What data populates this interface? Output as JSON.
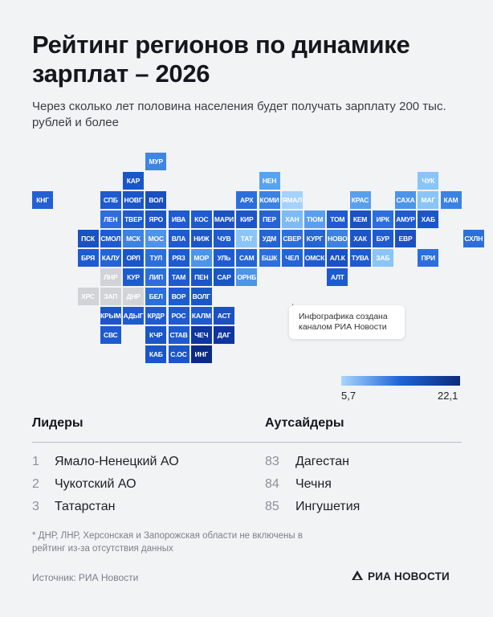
{
  "header": {
    "title": "Рейтинг регионов по динамике зарплат – 2026",
    "subtitle": "Через сколько лет половина населения будет получать зарплату 200 тыс. рублей и более"
  },
  "map": {
    "regions": [
      {
        "label": "МУР",
        "row": 0,
        "col": 5,
        "color": "#3f86e4"
      },
      {
        "label": "КАР",
        "row": 1,
        "col": 4,
        "color": "#1b56c9"
      },
      {
        "label": "НЕН",
        "row": 1,
        "col": 10,
        "color": "#5aa2ee"
      },
      {
        "label": "ЧУК",
        "row": 1,
        "col": 17,
        "color": "#8ac5f6"
      },
      {
        "label": "КНГ",
        "row": 2,
        "col": 0,
        "color": "#2460d2"
      },
      {
        "label": "СПБ",
        "row": 2,
        "col": 3,
        "color": "#1e5bd0"
      },
      {
        "label": "НОВГ",
        "row": 2,
        "col": 4,
        "color": "#1b56c9"
      },
      {
        "label": "ВОЛ",
        "row": 2,
        "col": 5,
        "color": "#194fbf"
      },
      {
        "label": "АРХ",
        "row": 2,
        "col": 9,
        "color": "#2c6fdc"
      },
      {
        "label": "КОМИ",
        "row": 2,
        "col": 10,
        "color": "#3b82e3"
      },
      {
        "label": "ЯМАЛ",
        "row": 2,
        "col": 11,
        "color": "#a4d2fa"
      },
      {
        "label": "КРАС",
        "row": 2,
        "col": 14,
        "color": "#5a9fee"
      },
      {
        "label": "САХА",
        "row": 2,
        "col": 16,
        "color": "#4d94ea"
      },
      {
        "label": "МАГ",
        "row": 2,
        "col": 17,
        "color": "#8ac5f6"
      },
      {
        "label": "КАМ",
        "row": 2,
        "col": 18,
        "color": "#3b82e3"
      },
      {
        "label": "ЛЕН",
        "row": 3,
        "col": 3,
        "color": "#2c6fdc"
      },
      {
        "label": "ТВЕР",
        "row": 3,
        "col": 4,
        "color": "#1e5bd0"
      },
      {
        "label": "ЯРО",
        "row": 3,
        "col": 5,
        "color": "#1b56c9"
      },
      {
        "label": "ИВА",
        "row": 3,
        "col": 6,
        "color": "#1e5bd0"
      },
      {
        "label": "КОС",
        "row": 3,
        "col": 7,
        "color": "#1e5bd0"
      },
      {
        "label": "МАРИ",
        "row": 3,
        "col": 8,
        "color": "#1a52c4"
      },
      {
        "label": "КИР",
        "row": 3,
        "col": 9,
        "color": "#1b56c9"
      },
      {
        "label": "ПЕР",
        "row": 3,
        "col": 10,
        "color": "#2464d4"
      },
      {
        "label": "ХАН",
        "row": 3,
        "col": 11,
        "color": "#7cbcf4"
      },
      {
        "label": "ТЮМ",
        "row": 3,
        "col": 12,
        "color": "#5a9fee"
      },
      {
        "label": "ТОМ",
        "row": 3,
        "col": 13,
        "color": "#1e5bd0"
      },
      {
        "label": "КЕМ",
        "row": 3,
        "col": 14,
        "color": "#1a52c4"
      },
      {
        "label": "ИРК",
        "row": 3,
        "col": 15,
        "color": "#2c6fdc"
      },
      {
        "label": "АМУР",
        "row": 3,
        "col": 16,
        "color": "#1e5bd0"
      },
      {
        "label": "ХАБ",
        "row": 3,
        "col": 17,
        "color": "#1b56c9"
      },
      {
        "label": "ПСК",
        "row": 4,
        "col": 2,
        "color": "#1a52c4"
      },
      {
        "label": "СМОЛ",
        "row": 4,
        "col": 3,
        "color": "#1e5bd0"
      },
      {
        "label": "МСК",
        "row": 4,
        "col": 4,
        "color": "#3b82e3"
      },
      {
        "label": "МОС",
        "row": 4,
        "col": 5,
        "color": "#4d94ea"
      },
      {
        "label": "ВЛА",
        "row": 4,
        "col": 6,
        "color": "#1e5bd0"
      },
      {
        "label": "НИЖ",
        "row": 4,
        "col": 7,
        "color": "#1b56c9"
      },
      {
        "label": "ЧУВ",
        "row": 4,
        "col": 8,
        "color": "#1e5bd0"
      },
      {
        "label": "ТАТ",
        "row": 4,
        "col": 9,
        "color": "#8ac5f6"
      },
      {
        "label": "УДМ",
        "row": 4,
        "col": 10,
        "color": "#2464d4"
      },
      {
        "label": "СВЕР",
        "row": 4,
        "col": 11,
        "color": "#2c6fdc"
      },
      {
        "label": "КУРГ",
        "row": 4,
        "col": 12,
        "color": "#2464d4"
      },
      {
        "label": "НОВО",
        "row": 4,
        "col": 13,
        "color": "#3b82e3"
      },
      {
        "label": "ХАК",
        "row": 4,
        "col": 14,
        "color": "#1b56c9"
      },
      {
        "label": "БУР",
        "row": 4,
        "col": 15,
        "color": "#1e5bd0"
      },
      {
        "label": "ЕВР",
        "row": 4,
        "col": 16,
        "color": "#1a52c4"
      },
      {
        "label": "СХЛН",
        "row": 4,
        "col": 19,
        "color": "#2c6fdc"
      },
      {
        "label": "БРЯ",
        "row": 5,
        "col": 2,
        "color": "#1e5bd0"
      },
      {
        "label": "КАЛУ",
        "row": 5,
        "col": 3,
        "color": "#2464d4"
      },
      {
        "label": "ОРЛ",
        "row": 5,
        "col": 4,
        "color": "#1b56c9"
      },
      {
        "label": "ТУЛ",
        "row": 5,
        "col": 5,
        "color": "#2c6fdc"
      },
      {
        "label": "РЯЗ",
        "row": 5,
        "col": 6,
        "color": "#1e5bd0"
      },
      {
        "label": "МОР",
        "row": 5,
        "col": 7,
        "color": "#4d94ea"
      },
      {
        "label": "УЛЬ",
        "row": 5,
        "col": 8,
        "color": "#1e5bd0"
      },
      {
        "label": "САМ",
        "row": 5,
        "col": 9,
        "color": "#2464d4"
      },
      {
        "label": "БШК",
        "row": 5,
        "col": 10,
        "color": "#2c6fdc"
      },
      {
        "label": "ЧЕЛ",
        "row": 5,
        "col": 11,
        "color": "#2464d4"
      },
      {
        "label": "ОМСК",
        "row": 5,
        "col": 12,
        "color": "#1e5bd0"
      },
      {
        "label": "АЛ.К",
        "row": 5,
        "col": 13,
        "color": "#1a52c4"
      },
      {
        "label": "ТУВА",
        "row": 5,
        "col": 14,
        "color": "#1e5bd0"
      },
      {
        "label": "ЗАБ",
        "row": 5,
        "col": 15,
        "color": "#8ac5f6"
      },
      {
        "label": "ПРИ",
        "row": 5,
        "col": 17,
        "color": "#2c6fdc"
      },
      {
        "label": "ЛНР",
        "row": 6,
        "col": 3,
        "color": "#d1d3d6"
      },
      {
        "label": "КУР",
        "row": 6,
        "col": 4,
        "color": "#1e5bd0"
      },
      {
        "label": "ЛИП",
        "row": 6,
        "col": 5,
        "color": "#2c6fdc"
      },
      {
        "label": "ТАМ",
        "row": 6,
        "col": 6,
        "color": "#1e5bd0"
      },
      {
        "label": "ПЕН",
        "row": 6,
        "col": 7,
        "color": "#1b56c9"
      },
      {
        "label": "САР",
        "row": 6,
        "col": 8,
        "color": "#1b56c9"
      },
      {
        "label": "ОРНБ",
        "row": 6,
        "col": 9,
        "color": "#4d94ea"
      },
      {
        "label": "АЛТ",
        "row": 6,
        "col": 13,
        "color": "#1e5bd0"
      },
      {
        "label": "ХРС",
        "row": 7,
        "col": 2,
        "color": "#d1d3d6"
      },
      {
        "label": "ЗАП",
        "row": 7,
        "col": 3,
        "color": "#d1d3d6"
      },
      {
        "label": "ДНР",
        "row": 7,
        "col": 4,
        "color": "#d1d3d6"
      },
      {
        "label": "БЕЛ",
        "row": 7,
        "col": 5,
        "color": "#2c6fdc"
      },
      {
        "label": "ВОР",
        "row": 7,
        "col": 6,
        "color": "#1e5bd0"
      },
      {
        "label": "ВОЛГ",
        "row": 7,
        "col": 7,
        "color": "#1b56c9"
      },
      {
        "label": "КРЫМ",
        "row": 8,
        "col": 3,
        "color": "#1b56c9"
      },
      {
        "label": "АДЫГ",
        "row": 8,
        "col": 4,
        "color": "#1e5bd0"
      },
      {
        "label": "КРДР",
        "row": 8,
        "col": 5,
        "color": "#1e5bd0"
      },
      {
        "label": "РОС",
        "row": 8,
        "col": 6,
        "color": "#1e5bd0"
      },
      {
        "label": "КАЛМ",
        "row": 8,
        "col": 7,
        "color": "#1e5bd0"
      },
      {
        "label": "АСТ",
        "row": 8,
        "col": 8,
        "color": "#1a52c4"
      },
      {
        "label": "СВС",
        "row": 9,
        "col": 3,
        "color": "#1e5bd0"
      },
      {
        "label": "КЧР",
        "row": 9,
        "col": 5,
        "color": "#1b56c9"
      },
      {
        "label": "СТАВ",
        "row": 9,
        "col": 6,
        "color": "#1e5bd0"
      },
      {
        "label": "ЧЕЧ",
        "row": 9,
        "col": 7,
        "color": "#0f35a0"
      },
      {
        "label": "ДАГ",
        "row": 9,
        "col": 8,
        "color": "#0f35a0"
      },
      {
        "label": "КАБ",
        "row": 10,
        "col": 5,
        "color": "#1b56c9"
      },
      {
        "label": "С.ОС",
        "row": 10,
        "col": 6,
        "color": "#1b56c9"
      },
      {
        "label": "ИНГ",
        "row": 10,
        "col": 7,
        "color": "#0b2a85"
      }
    ],
    "callout": "Инфографика создана каналом РИА Новости",
    "legend": {
      "min": "5,7",
      "max": "22,1",
      "low_color": "#a9d6fb",
      "high_color": "#0d2a7a"
    }
  },
  "leaders": {
    "heading": "Лидеры",
    "items": [
      {
        "rank": "1",
        "name": "Ямало-Ненецкий АО"
      },
      {
        "rank": "2",
        "name": "Чукотский АО"
      },
      {
        "rank": "3",
        "name": "Татарстан"
      }
    ]
  },
  "outsiders": {
    "heading": "Аутсайдеры",
    "items": [
      {
        "rank": "83",
        "name": "Дагестан"
      },
      {
        "rank": "84",
        "name": "Чечня"
      },
      {
        "rank": "85",
        "name": "Ингушетия"
      }
    ]
  },
  "footer": {
    "footnote": "* ДНР, ЛНР, Херсонская и Запорожская области не включены в рейтинг из-за отсутствия данных",
    "source": "Источник: РИА Новости",
    "logo_text": "РИА НОВОСТИ"
  }
}
